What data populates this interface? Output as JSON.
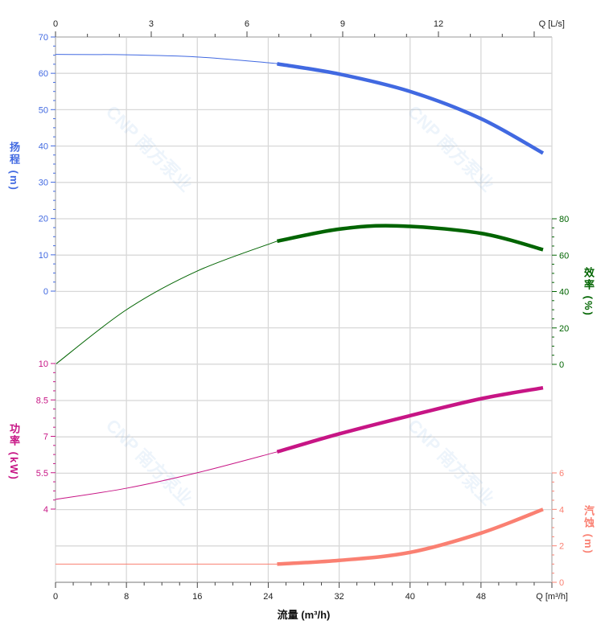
{
  "chart_data": {
    "type": "line",
    "xlabel": "流量 (m³/h)",
    "x_unit_label": "Q [m³/h]",
    "x_top_unit_label": "Q [L/s]",
    "xlim": [
      0,
      56
    ],
    "x_ticks": [
      0,
      8,
      16,
      24,
      32,
      40,
      48
    ],
    "x_top_ticks": [
      0,
      3,
      6,
      9,
      12
    ],
    "grid": true,
    "watermark": "CNP 南方泵业",
    "operating_range": [
      25,
      55
    ],
    "series": [
      {
        "name": "扬程 (m)",
        "axis": "left-top",
        "color": "#4169e1",
        "ylim": [
          0,
          70
        ],
        "ticks": [
          0,
          10,
          20,
          30,
          40,
          50,
          60,
          70
        ],
        "x": [
          0,
          8,
          16,
          24,
          25,
          32,
          40,
          48,
          55
        ],
        "y": [
          65.2,
          65.1,
          64.5,
          62.9,
          62.6,
          59.8,
          55,
          47.5,
          38
        ]
      },
      {
        "name": "效率 (%)",
        "axis": "right-top",
        "color": "#006400",
        "ylim": [
          0,
          80
        ],
        "ticks": [
          0,
          20,
          40,
          60,
          80
        ],
        "x": [
          0,
          8,
          16,
          25,
          32,
          38.5,
          48,
          55
        ],
        "y": [
          0,
          30,
          51.3,
          67.7,
          74.3,
          76.1,
          72,
          63
        ]
      },
      {
        "name": "功率 (kW)",
        "axis": "left-bottom",
        "color": "#c71585",
        "ylim": [
          4,
          10
        ],
        "ticks": [
          "4",
          "5.5",
          "7",
          "8.5",
          "10"
        ],
        "x": [
          0,
          8,
          16,
          25,
          32,
          40,
          48,
          55
        ],
        "y": [
          4.4,
          4.86,
          5.5,
          6.36,
          7.1,
          7.85,
          8.55,
          9.0
        ]
      },
      {
        "name": "汽蚀 (m)",
        "axis": "right-bottom",
        "color": "#fa8072",
        "ylim": [
          0,
          6
        ],
        "ticks": [
          0,
          2,
          4,
          6
        ],
        "x": [
          0,
          25,
          32,
          40,
          48,
          55
        ],
        "y": [
          1.0,
          1.0,
          1.2,
          1.64,
          2.7,
          4.0
        ]
      }
    ]
  },
  "labels": {
    "head": "扬程 (m)",
    "eff": "效率 (%)",
    "power": "功率 (kW)",
    "npsh": "汽蚀 (m)"
  }
}
